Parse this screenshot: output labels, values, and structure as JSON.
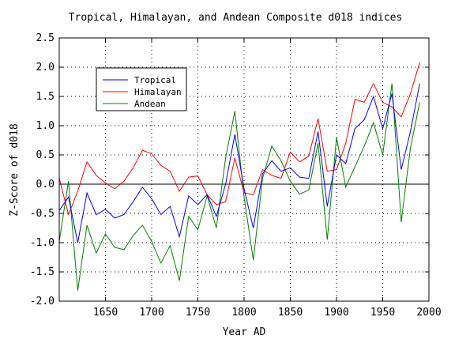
{
  "chart_data": {
    "type": "line",
    "title": "Tropical, Himalayan, and Andean Composite d018 indices",
    "xlabel": "Year AD",
    "ylabel": "Z-Score of d018",
    "xlim": [
      1600,
      2000
    ],
    "ylim": [
      -2.0,
      2.5
    ],
    "xticks": [
      1650,
      1700,
      1750,
      1800,
      1850,
      1900,
      1950,
      2000
    ],
    "yticks": [
      -2.0,
      -1.5,
      -1.0,
      -0.5,
      0.0,
      0.5,
      1.0,
      1.5,
      2.0,
      2.5
    ],
    "xtick_labels": [
      "1650",
      "1700",
      "1750",
      "1800",
      "1850",
      "1900",
      "1950",
      "2000"
    ],
    "ytick_labels": [
      "-2.0",
      "-1.5",
      "-1.0",
      "-0.5",
      "0.0",
      "0.5",
      "1.0",
      "1.5",
      "2.0",
      "2.5"
    ],
    "grid": "dotted",
    "zero_line": true,
    "legend_position": "upper-left",
    "x": [
      1600,
      1610,
      1620,
      1630,
      1640,
      1650,
      1660,
      1670,
      1680,
      1690,
      1700,
      1710,
      1720,
      1730,
      1740,
      1750,
      1760,
      1770,
      1780,
      1790,
      1800,
      1810,
      1820,
      1830,
      1840,
      1850,
      1860,
      1870,
      1880,
      1890,
      1900,
      1910,
      1920,
      1930,
      1940,
      1950,
      1960,
      1970,
      1980,
      1990
    ],
    "series": [
      {
        "name": "Tropical",
        "color": "#0000ff",
        "values": [
          -0.45,
          -0.22,
          -1.0,
          -0.15,
          -0.52,
          -0.43,
          -0.58,
          -0.52,
          -0.3,
          -0.05,
          -0.25,
          -0.52,
          -0.38,
          -0.9,
          -0.2,
          -0.35,
          -0.18,
          -0.55,
          0.0,
          0.85,
          -0.08,
          -0.75,
          0.18,
          0.4,
          0.22,
          0.28,
          0.12,
          0.1,
          0.9,
          -0.38,
          0.5,
          0.35,
          0.95,
          1.1,
          1.5,
          0.95,
          1.55,
          0.25,
          0.9,
          1.72
        ]
      },
      {
        "name": "Himalayan",
        "color": "#ff0000",
        "values": [
          0.1,
          -0.52,
          -0.12,
          0.38,
          0.15,
          0.02,
          -0.08,
          0.05,
          0.28,
          0.58,
          0.52,
          0.32,
          0.22,
          -0.12,
          0.12,
          0.14,
          -0.18,
          -0.35,
          -0.3,
          0.45,
          -0.15,
          -0.18,
          0.25,
          0.15,
          0.1,
          0.55,
          0.38,
          0.48,
          1.12,
          0.22,
          0.25,
          0.7,
          1.45,
          1.4,
          1.72,
          1.4,
          1.32,
          1.15,
          1.55,
          2.08
        ]
      },
      {
        "name": "Andean",
        "color": "#008000",
        "values": [
          -0.98,
          0.05,
          -1.82,
          -0.7,
          -1.18,
          -0.85,
          -1.08,
          -1.12,
          -0.88,
          -0.7,
          -0.98,
          -1.35,
          -1.05,
          -1.65,
          -0.55,
          -0.78,
          -0.2,
          -0.75,
          0.45,
          1.25,
          -0.22,
          -1.3,
          0.1,
          0.65,
          0.4,
          0.05,
          -0.17,
          -0.1,
          0.7,
          -0.95,
          0.8,
          -0.05,
          0.3,
          0.65,
          1.05,
          0.5,
          1.72,
          -0.65,
          0.62,
          1.4
        ]
      }
    ]
  }
}
